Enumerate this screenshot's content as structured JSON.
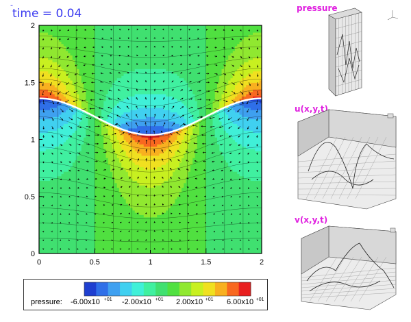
{
  "header": {
    "dash": "-",
    "time_label": "time = 0.04"
  },
  "panels": {
    "pressure_label": "pressure",
    "u_label": "u(x,y,t)",
    "v_label": "v(x,y,t)"
  },
  "legend": {
    "title": "pressure:",
    "labels": [
      "-6.00x10",
      "-2.00x10",
      "2.00x10",
      "6.00x10"
    ],
    "exponent": "+01",
    "colors": [
      "#1f3fd0",
      "#2f6fe8",
      "#3fa0f0",
      "#40d0f0",
      "#40f0d8",
      "#40f0a0",
      "#40e070",
      "#50e040",
      "#90e830",
      "#c8f020",
      "#f0e020",
      "#f8b020",
      "#f86820",
      "#e82020"
    ]
  },
  "chart_data": {
    "type": "heatmap",
    "title": "time = 0.04",
    "xlim": [
      0,
      2
    ],
    "ylim": [
      0,
      2
    ],
    "xticks": [
      "0",
      "0.5",
      "1",
      "1.5",
      "2"
    ],
    "yticks": [
      "0",
      "0.5",
      "1",
      "1.5",
      "2"
    ],
    "interface_curve": {
      "x": [
        0,
        0.25,
        0.5,
        0.75,
        1.0,
        1.25,
        1.5,
        1.75,
        2.0
      ],
      "y": [
        1.36,
        1.33,
        1.24,
        1.1,
        1.04,
        1.1,
        1.24,
        1.33,
        1.36
      ]
    },
    "colorbar_ticks": [
      -60,
      -20,
      20,
      60
    ]
  },
  "colors": {
    "title": "#3a3af0",
    "panel_label": "#e020e0",
    "interface": "#ffffff"
  }
}
